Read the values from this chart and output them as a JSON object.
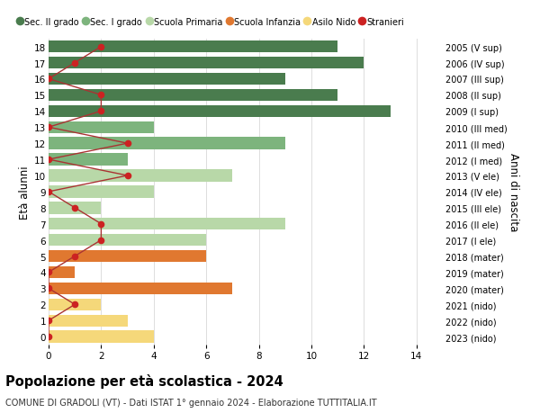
{
  "ages": [
    18,
    17,
    16,
    15,
    14,
    13,
    12,
    11,
    10,
    9,
    8,
    7,
    6,
    5,
    4,
    3,
    2,
    1,
    0
  ],
  "anni_nascita": [
    "2005 (V sup)",
    "2006 (IV sup)",
    "2007 (III sup)",
    "2008 (II sup)",
    "2009 (I sup)",
    "2010 (III med)",
    "2011 (II med)",
    "2012 (I med)",
    "2013 (V ele)",
    "2014 (IV ele)",
    "2015 (III ele)",
    "2016 (II ele)",
    "2017 (I ele)",
    "2018 (mater)",
    "2019 (mater)",
    "2020 (mater)",
    "2021 (nido)",
    "2022 (nido)",
    "2023 (nido)"
  ],
  "bar_values": [
    11,
    12,
    9,
    11,
    13,
    4,
    9,
    3,
    7,
    4,
    2,
    9,
    6,
    6,
    1,
    7,
    2,
    3,
    4
  ],
  "bar_colors": [
    "#4a7c4e",
    "#4a7c4e",
    "#4a7c4e",
    "#4a7c4e",
    "#4a7c4e",
    "#7db47d",
    "#7db47d",
    "#7db47d",
    "#b8d8a8",
    "#b8d8a8",
    "#b8d8a8",
    "#b8d8a8",
    "#b8d8a8",
    "#e07830",
    "#e07830",
    "#e07830",
    "#f5d87a",
    "#f5d87a",
    "#f5d87a"
  ],
  "stranieri_x": [
    2,
    1,
    0,
    2,
    2,
    0,
    3,
    0,
    3,
    0,
    1,
    2,
    2,
    1,
    0,
    0,
    1,
    0,
    0
  ],
  "title": "Popolazione per età scolastica - 2024",
  "subtitle": "COMUNE DI GRADOLI (VT) - Dati ISTAT 1° gennaio 2024 - Elaborazione TUTTITALIA.IT",
  "ylabel": "Età alunni",
  "right_ylabel": "Anni di nascita",
  "legend_labels": [
    "Sec. II grado",
    "Sec. I grado",
    "Scuola Primaria",
    "Scuola Infanzia",
    "Asilo Nido",
    "Stranieri"
  ],
  "legend_colors": [
    "#4a7c4e",
    "#7db47d",
    "#b8d8a8",
    "#e07830",
    "#f5d87a",
    "#cc2222"
  ],
  "bg_color": "#ffffff",
  "grid_color": "#dddddd",
  "stranieri_color": "#cc2222",
  "stranieri_line_color": "#aa3333"
}
